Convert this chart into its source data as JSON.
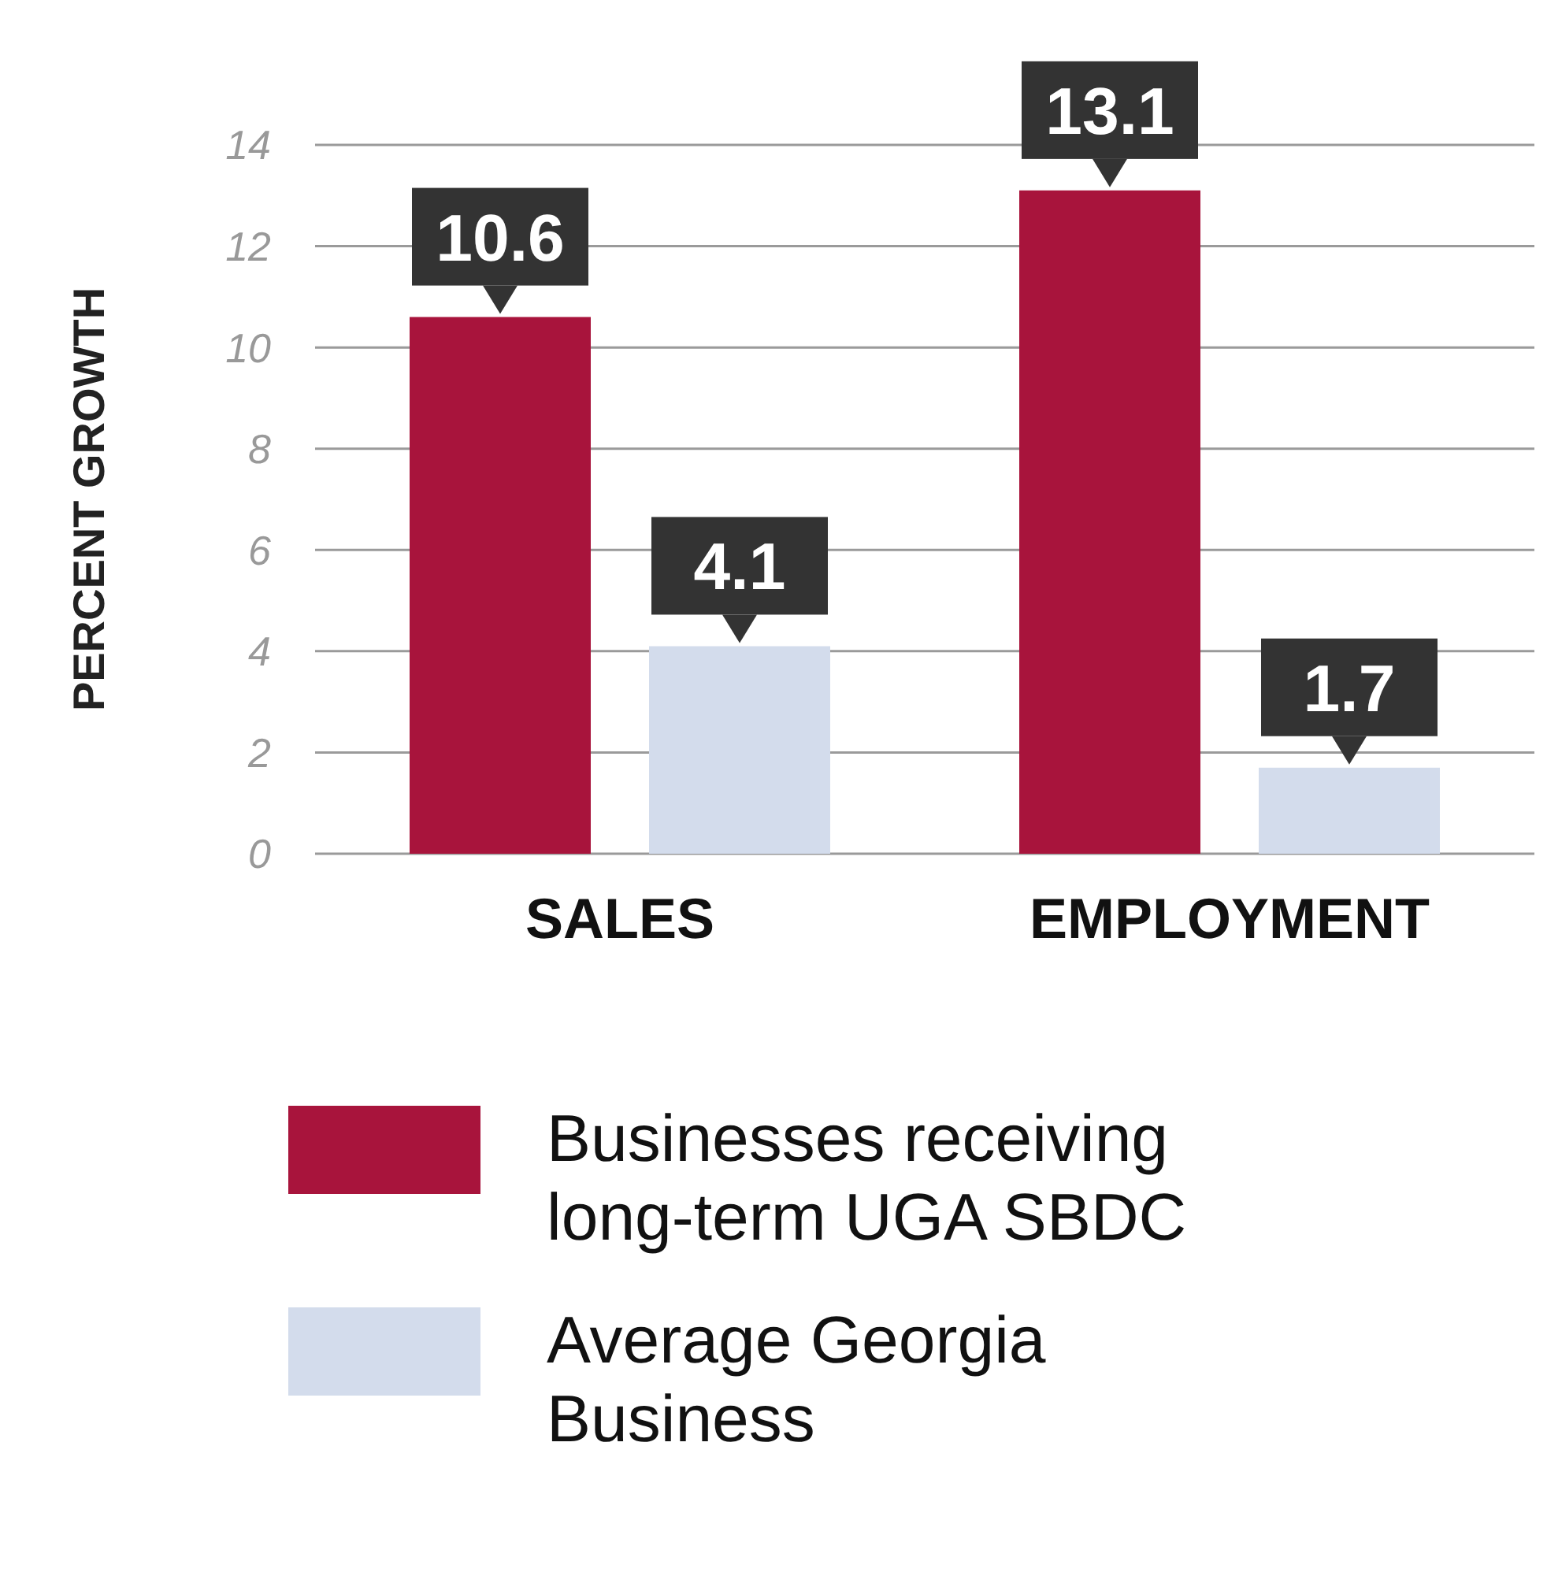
{
  "chart_data": {
    "type": "bar",
    "ylabel": "PERCENT GROWTH",
    "categories": [
      "SALES",
      "EMPLOYMENT"
    ],
    "series": [
      {
        "name": "Businesses receiving long-term UGA SBDC",
        "color": "#a8143c",
        "values": [
          10.6,
          13.1
        ]
      },
      {
        "name": "Average Georgia Business",
        "color": "#d3dcec",
        "values": [
          4.1,
          1.7
        ]
      }
    ],
    "ylim": [
      0,
      14
    ],
    "yticks": [
      0,
      2,
      4,
      6,
      8,
      10,
      12,
      14
    ],
    "grid": "y",
    "legend": "bottom",
    "data_labels": true
  }
}
